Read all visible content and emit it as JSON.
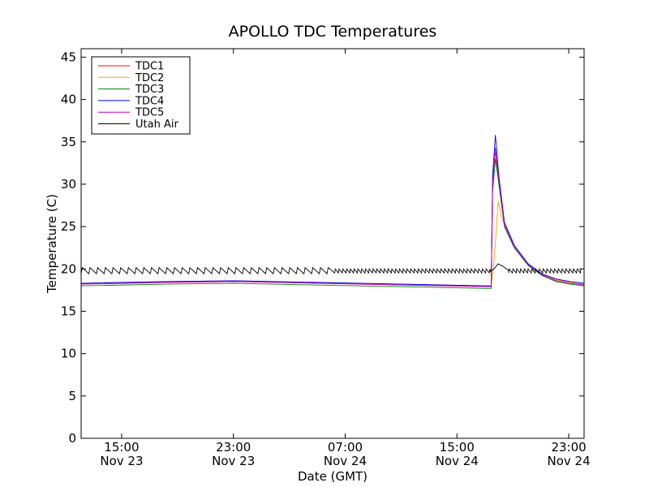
{
  "chart_data": {
    "type": "line",
    "title": "APOLLO TDC Temperatures",
    "xlabel": "Date (GMT)",
    "ylabel": "Temperature (C)",
    "ylim": [
      0,
      46
    ],
    "xlim_hours": [
      0,
      36
    ],
    "yticks": [
      0,
      5,
      10,
      15,
      20,
      25,
      30,
      35,
      40,
      45
    ],
    "xticks": [
      {
        "hour": 2.9,
        "time": "15:00",
        "date": "Nov 23"
      },
      {
        "hour": 10.9,
        "time": "23:00",
        "date": "Nov 23"
      },
      {
        "hour": 18.9,
        "time": "07:00",
        "date": "Nov 24"
      },
      {
        "hour": 26.9,
        "time": "15:00",
        "date": "Nov 24"
      },
      {
        "hour": 34.9,
        "time": "23:00",
        "date": "Nov 24"
      }
    ],
    "legend_position": "top-left",
    "series": [
      {
        "name": "TDC1",
        "color": "#ff0000",
        "points": [
          [
            0,
            18.3
          ],
          [
            6,
            18.5
          ],
          [
            11,
            18.6
          ],
          [
            20,
            18.3
          ],
          [
            29,
            18.0
          ],
          [
            29.35,
            18.0
          ],
          [
            29.45,
            30
          ],
          [
            29.65,
            34
          ],
          [
            29.9,
            30
          ],
          [
            30.3,
            25
          ],
          [
            31,
            22.5
          ],
          [
            32,
            20.5
          ],
          [
            33,
            19.4
          ],
          [
            34,
            18.8
          ],
          [
            35,
            18.5
          ],
          [
            36,
            18.3
          ]
        ]
      },
      {
        "name": "TDC2",
        "color": "#ffa500",
        "points": [
          [
            0,
            18.2
          ],
          [
            6,
            18.4
          ],
          [
            11,
            18.5
          ],
          [
            20,
            18.2
          ],
          [
            29,
            17.9
          ],
          [
            29.35,
            17.9
          ],
          [
            29.5,
            20
          ],
          [
            29.65,
            23
          ],
          [
            29.85,
            28
          ],
          [
            30.1,
            26
          ],
          [
            30.5,
            24.5
          ],
          [
            31,
            22.5
          ],
          [
            32,
            20.5
          ],
          [
            33,
            19.3
          ],
          [
            34,
            18.7
          ],
          [
            35,
            18.4
          ],
          [
            36,
            18.2
          ]
        ]
      },
      {
        "name": "TDC3",
        "color": "#008000",
        "points": [
          [
            0,
            18.0
          ],
          [
            6,
            18.2
          ],
          [
            11,
            18.3
          ],
          [
            20,
            18.0
          ],
          [
            29,
            17.7
          ],
          [
            29.35,
            17.7
          ],
          [
            29.45,
            29
          ],
          [
            29.65,
            33
          ],
          [
            29.9,
            30
          ],
          [
            30.3,
            25
          ],
          [
            31,
            22.5
          ],
          [
            32,
            20.4
          ],
          [
            33,
            19.2
          ],
          [
            34,
            18.5
          ],
          [
            35,
            18.2
          ],
          [
            36,
            18.0
          ]
        ]
      },
      {
        "name": "TDC4",
        "color": "#0000ff",
        "points": [
          [
            0,
            18.3
          ],
          [
            6,
            18.5
          ],
          [
            11,
            18.6
          ],
          [
            20,
            18.3
          ],
          [
            29,
            18.0
          ],
          [
            29.35,
            18.0
          ],
          [
            29.45,
            31
          ],
          [
            29.65,
            35.8
          ],
          [
            29.9,
            31
          ],
          [
            30.3,
            25.5
          ],
          [
            31,
            22.8
          ],
          [
            32,
            20.6
          ],
          [
            33,
            19.4
          ],
          [
            34,
            18.8
          ],
          [
            35,
            18.5
          ],
          [
            36,
            18.3
          ]
        ]
      },
      {
        "name": "TDC5",
        "color": "#bf00bf",
        "points": [
          [
            0,
            18.2
          ],
          [
            6,
            18.4
          ],
          [
            11,
            18.5
          ],
          [
            20,
            18.2
          ],
          [
            29,
            17.9
          ],
          [
            29.35,
            17.9
          ],
          [
            29.45,
            30
          ],
          [
            29.65,
            34.3
          ],
          [
            29.9,
            30.5
          ],
          [
            30.3,
            25.2
          ],
          [
            31,
            22.6
          ],
          [
            32,
            20.5
          ],
          [
            33,
            19.3
          ],
          [
            34,
            18.6
          ],
          [
            35,
            18.3
          ],
          [
            36,
            18.1
          ]
        ]
      },
      {
        "name": "Utah Air",
        "color": "#000000",
        "baseline": 19.7,
        "amp_early": 0.45,
        "amp_late": 0.3,
        "cycle_early": 0.55,
        "cycle_late": 0.27,
        "points": [
          [
            29.3,
            19.7
          ],
          [
            29.55,
            20.0
          ],
          [
            29.85,
            20.6
          ],
          [
            30.2,
            20.3
          ],
          [
            30.6,
            19.8
          ]
        ]
      }
    ]
  }
}
